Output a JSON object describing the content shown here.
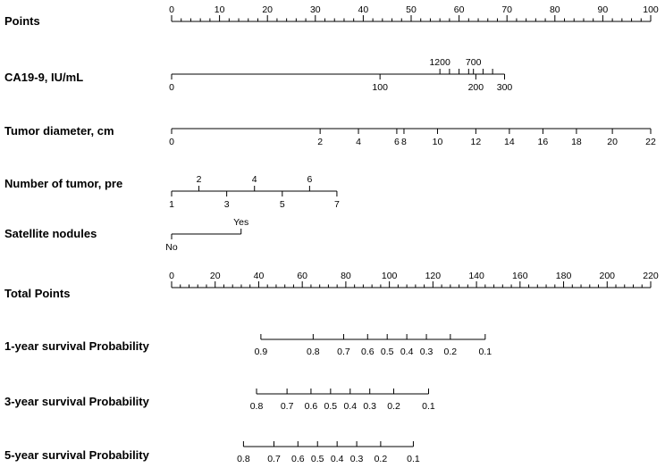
{
  "chart_data": {
    "type": "nomogram",
    "points_scale": {
      "label": "Points",
      "range": [
        0,
        100
      ],
      "major_ticks": [
        0,
        10,
        20,
        30,
        40,
        50,
        60,
        70,
        80,
        90,
        100
      ],
      "minor_step": 2
    },
    "predictors": [
      {
        "label": "CA19-9, IU/mL",
        "ticks": [
          {
            "value": "0",
            "points": 0,
            "side": "below"
          },
          {
            "value": "100",
            "points": 43.5,
            "side": "below"
          },
          {
            "value": "200",
            "points": 63.5,
            "side": "below"
          },
          {
            "value": "300",
            "points": 69.5,
            "side": "below"
          },
          {
            "value": "1200",
            "points": 56,
            "side": "above"
          },
          {
            "value": "700",
            "points": 63,
            "side": "above"
          },
          {
            "value": "",
            "points": 58,
            "side": "above"
          },
          {
            "value": "",
            "points": 60,
            "side": "above"
          },
          {
            "value": "",
            "points": 62,
            "side": "above"
          },
          {
            "value": "",
            "points": 65,
            "side": "above"
          },
          {
            "value": "",
            "points": 67,
            "side": "above"
          }
        ]
      },
      {
        "label": "Tumor diameter, cm",
        "ticks": [
          {
            "value": "0",
            "points": 0,
            "side": "below"
          },
          {
            "value": "2",
            "points": 31,
            "side": "below"
          },
          {
            "value": "4",
            "points": 39,
            "side": "below"
          },
          {
            "value": "6",
            "points": 47,
            "side": "below"
          },
          {
            "value": "8",
            "points": 48.5,
            "side": "below"
          },
          {
            "value": "10",
            "points": 55.5,
            "side": "below"
          },
          {
            "value": "12",
            "points": 63.5,
            "side": "below"
          },
          {
            "value": "14",
            "points": 70.5,
            "side": "below"
          },
          {
            "value": "16",
            "points": 77.5,
            "side": "below"
          },
          {
            "value": "18",
            "points": 84.5,
            "side": "below"
          },
          {
            "value": "20",
            "points": 92,
            "side": "below"
          },
          {
            "value": "22",
            "points": 100,
            "side": "below"
          }
        ]
      },
      {
        "label": "Number of tumor, pre",
        "ticks": [
          {
            "value": "1",
            "points": 0,
            "side": "below"
          },
          {
            "value": "2",
            "points": 5.7,
            "side": "above"
          },
          {
            "value": "3",
            "points": 11.5,
            "side": "below"
          },
          {
            "value": "4",
            "points": 17.3,
            "side": "above"
          },
          {
            "value": "5",
            "points": 23.1,
            "side": "below"
          },
          {
            "value": "6",
            "points": 28.8,
            "side": "above"
          },
          {
            "value": "7",
            "points": 34.5,
            "side": "below"
          }
        ]
      },
      {
        "label": "Satellite nodules",
        "ticks": [
          {
            "value": "No",
            "points": 0,
            "side": "below"
          },
          {
            "value": "Yes",
            "points": 14.5,
            "side": "above"
          }
        ]
      }
    ],
    "total_points": {
      "label": "Total Points",
      "range": [
        0,
        220
      ],
      "major_ticks": [
        0,
        20,
        40,
        60,
        80,
        100,
        120,
        140,
        160,
        180,
        200,
        220
      ],
      "minor_step": 4
    },
    "outcomes": [
      {
        "label": "1-year survival Probability",
        "ticks": [
          {
            "value": "0.9",
            "total_points": 41
          },
          {
            "value": "0.8",
            "total_points": 65
          },
          {
            "value": "0.7",
            "total_points": 79
          },
          {
            "value": "0.6",
            "total_points": 90
          },
          {
            "value": "0.5",
            "total_points": 99
          },
          {
            "value": "0.4",
            "total_points": 108
          },
          {
            "value": "0.3",
            "total_points": 117
          },
          {
            "value": "0.2",
            "total_points": 128
          },
          {
            "value": "0.1",
            "total_points": 144
          }
        ]
      },
      {
        "label": "3-year survival Probability",
        "ticks": [
          {
            "value": "0.8",
            "total_points": 39
          },
          {
            "value": "0.7",
            "total_points": 53
          },
          {
            "value": "0.6",
            "total_points": 64
          },
          {
            "value": "0.5",
            "total_points": 73
          },
          {
            "value": "0.4",
            "total_points": 82
          },
          {
            "value": "0.3",
            "total_points": 91
          },
          {
            "value": "0.2",
            "total_points": 102
          },
          {
            "value": "0.1",
            "total_points": 118
          }
        ]
      },
      {
        "label": "5-year survival Probability",
        "ticks": [
          {
            "value": "0.8",
            "total_points": 33
          },
          {
            "value": "0.7",
            "total_points": 47
          },
          {
            "value": "0.6",
            "total_points": 58
          },
          {
            "value": "0.5",
            "total_points": 67
          },
          {
            "value": "0.4",
            "total_points": 76
          },
          {
            "value": "0.3",
            "total_points": 85
          },
          {
            "value": "0.2",
            "total_points": 96
          },
          {
            "value": "0.1",
            "total_points": 111
          }
        ]
      }
    ]
  }
}
